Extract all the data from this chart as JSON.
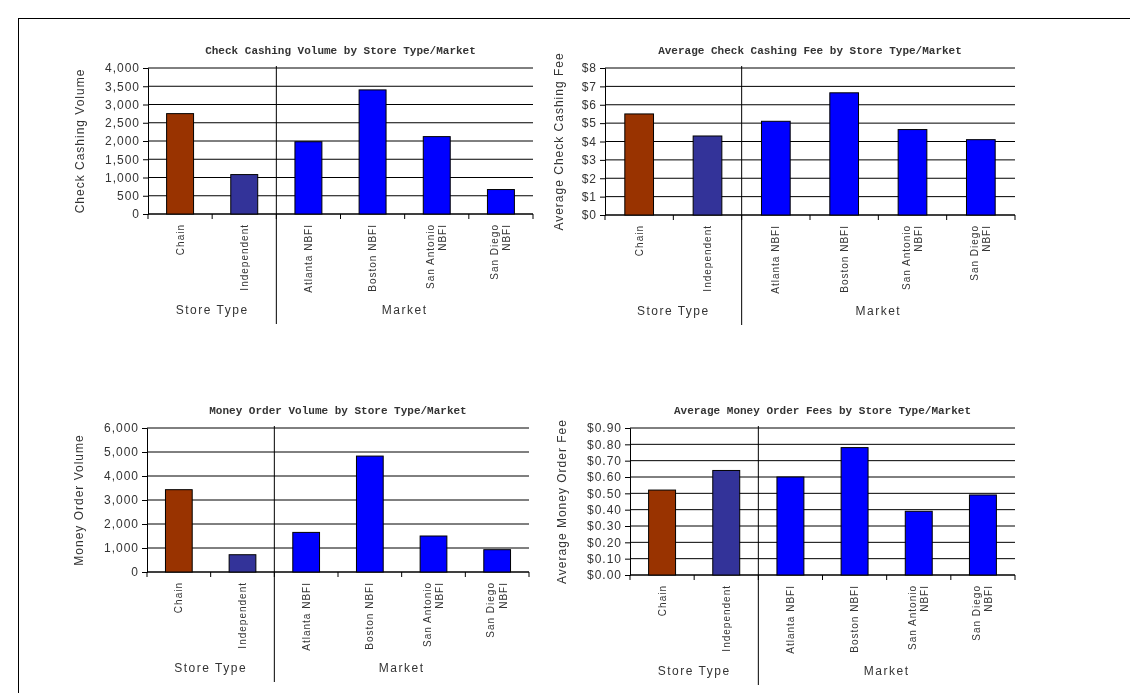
{
  "chart_data": [
    {
      "type": "bar",
      "title": "Check Cashing Volume by Store Type/Market",
      "ylabel": "Check Cashing Volume",
      "categories": [
        "Chain",
        "Independent",
        "Atlanta NBFI",
        "Boston NBFI",
        "San Antonio NBFI",
        "San Diego NBFI"
      ],
      "values": [
        2750,
        1080,
        1980,
        3400,
        2120,
        670
      ],
      "colors": [
        "#993300",
        "#333399",
        "#0000ff",
        "#0000ff",
        "#0000ff",
        "#0000ff"
      ],
      "ylim": [
        0,
        4000
      ],
      "yticks": [
        {
          "value": 0,
          "label": "0"
        },
        {
          "value": 500,
          "label": "500"
        },
        {
          "value": 1000,
          "label": "1,000"
        },
        {
          "value": 1500,
          "label": "1,500"
        },
        {
          "value": 2000,
          "label": "2,000"
        },
        {
          "value": 2500,
          "label": "2,500"
        },
        {
          "value": 3000,
          "label": "3,000"
        },
        {
          "value": 3500,
          "label": "3,500"
        },
        {
          "value": 4000,
          "label": "4,000"
        }
      ],
      "grid": "y",
      "annotations": [
        "Store Type",
        "Market"
      ]
    },
    {
      "type": "bar",
      "title": "Average Check Cashing Fee  by Store Type/Market",
      "ylabel": "Average Check Cashing Fee",
      "categories": [
        "Chain",
        "Independent",
        "Atlanta NBFI",
        "Boston NBFI",
        "San Antonio NBFI",
        "San Diego NBFI"
      ],
      "values": [
        5.5,
        4.3,
        5.1,
        6.65,
        4.65,
        4.1
      ],
      "colors": [
        "#993300",
        "#333399",
        "#0000ff",
        "#0000ff",
        "#0000ff",
        "#0000ff"
      ],
      "ylim": [
        0,
        8
      ],
      "yticks": [
        {
          "value": 0,
          "label": "$0"
        },
        {
          "value": 1,
          "label": "$1"
        },
        {
          "value": 2,
          "label": "$2"
        },
        {
          "value": 3,
          "label": "$3"
        },
        {
          "value": 4,
          "label": "$4"
        },
        {
          "value": 5,
          "label": "$5"
        },
        {
          "value": 6,
          "label": "$6"
        },
        {
          "value": 7,
          "label": "$7"
        },
        {
          "value": 8,
          "label": "$8"
        }
      ],
      "grid": "y",
      "annotations": [
        "Store Type",
        "Market"
      ]
    },
    {
      "type": "bar",
      "title": "Money Order Volume by Store Type/Market",
      "ylabel": "Money Order Volume",
      "categories": [
        "Chain",
        "Independent",
        "Atlanta NBFI",
        "Boston NBFI",
        "San Antonio NBFI",
        "San Diego NBFI"
      ],
      "values": [
        3430,
        720,
        1650,
        4830,
        1500,
        930
      ],
      "colors": [
        "#993300",
        "#333399",
        "#0000ff",
        "#0000ff",
        "#0000ff",
        "#0000ff"
      ],
      "ylim": [
        0,
        6000
      ],
      "yticks": [
        {
          "value": 0,
          "label": "0"
        },
        {
          "value": 1000,
          "label": "1,000"
        },
        {
          "value": 2000,
          "label": "2,000"
        },
        {
          "value": 3000,
          "label": "3,000"
        },
        {
          "value": 4000,
          "label": "4,000"
        },
        {
          "value": 5000,
          "label": "5,000"
        },
        {
          "value": 6000,
          "label": "6,000"
        }
      ],
      "grid": "y",
      "annotations": [
        "Store Type",
        "Market"
      ]
    },
    {
      "type": "bar",
      "title": "Average Money Order Fees by Store Type/Market",
      "ylabel": "Average Money Order Fee",
      "categories": [
        "Chain",
        "Independent",
        "Atlanta NBFI",
        "Boston NBFI",
        "San Antonio NBFI",
        "San Diego NBFI"
      ],
      "values": [
        0.52,
        0.64,
        0.6,
        0.78,
        0.39,
        0.49
      ],
      "colors": [
        "#993300",
        "#333399",
        "#0000ff",
        "#0000ff",
        "#0000ff",
        "#0000ff"
      ],
      "ylim": [
        0,
        0.9
      ],
      "yticks": [
        {
          "value": 0,
          "label": "$0.00"
        },
        {
          "value": 0.1,
          "label": "$0.10"
        },
        {
          "value": 0.2,
          "label": "$0.20"
        },
        {
          "value": 0.3,
          "label": "$0.30"
        },
        {
          "value": 0.4,
          "label": "$0.40"
        },
        {
          "value": 0.5,
          "label": "$0.50"
        },
        {
          "value": 0.6,
          "label": "$0.60"
        },
        {
          "value": 0.7,
          "label": "$0.70"
        },
        {
          "value": 0.8,
          "label": "$0.80"
        },
        {
          "value": 0.9,
          "label": "$0.90"
        }
      ],
      "grid": "y",
      "annotations": [
        "Store Type",
        "Market"
      ]
    }
  ]
}
